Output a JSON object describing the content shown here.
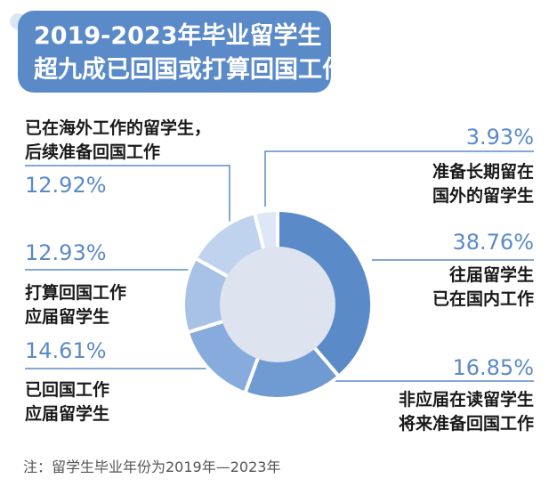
{
  "title": {
    "line1": "2019-2023年毕业留学生",
    "line2": "超九成已回国或打算回国工作"
  },
  "chart_data": {
    "type": "pie",
    "subtype": "donut",
    "start_angle_deg": 0,
    "direction": "clockwise",
    "slices": [
      {
        "label_line1": "往届留学生",
        "label_line2": "已在国内工作",
        "value": 38.76,
        "value_text": "38.76%",
        "color": "#5b8ac9"
      },
      {
        "label_line1": "非应届在读留学生",
        "label_line2": "将来准备回国工作",
        "value": 16.85,
        "value_text": "16.85%",
        "color": "#6f9ad2"
      },
      {
        "label_line1": "已回国工作",
        "label_line2": "应届留学生",
        "value": 14.61,
        "value_text": "14.61%",
        "color": "#86abdc"
      },
      {
        "label_line1": "打算回国工作",
        "label_line2": "应届留学生",
        "value": 12.93,
        "value_text": "12.93%",
        "color": "#a7c2e6"
      },
      {
        "label_line1": "已在海外工作的留学生，",
        "label_line2": "后续准备回国工作",
        "value": 12.92,
        "value_text": "12.92%",
        "color": "#bfd3ee"
      },
      {
        "label_line1": "准备长期留在",
        "label_line2": "国外的留学生",
        "value": 3.93,
        "value_text": "3.93%",
        "color": "#dde7f5"
      }
    ]
  },
  "note": "注：留学生毕业年份为2019年—2023年",
  "colors": {
    "accent": "#5b8ac9",
    "line": "#5b8ac9",
    "hole": "#dde3ef"
  }
}
